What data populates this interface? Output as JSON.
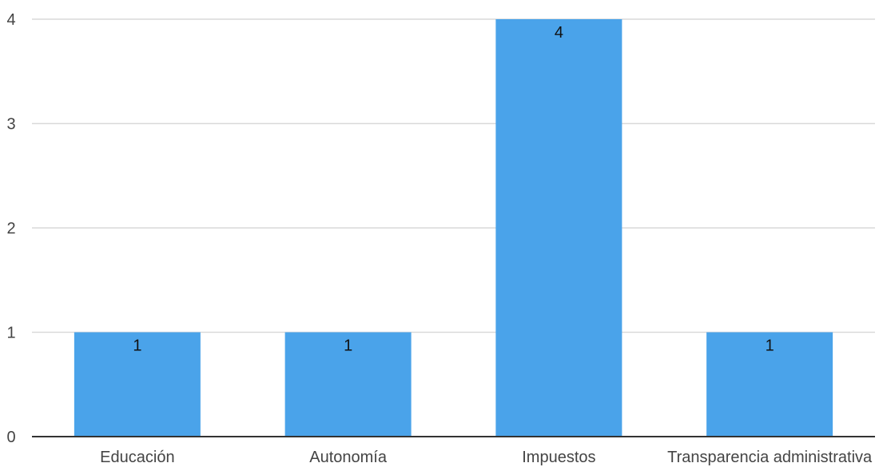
{
  "chart_data": {
    "type": "bar",
    "categories": [
      "Educación",
      "Autonomía",
      "Impuestos",
      "Transparencia administrativa"
    ],
    "values": [
      1,
      1,
      4,
      1
    ],
    "data_labels": [
      "1",
      "1",
      "4",
      "1"
    ],
    "y_ticks": [
      "0",
      "1",
      "2",
      "3",
      "4"
    ],
    "ylim": [
      0,
      4
    ],
    "grid": true,
    "legend": "none",
    "bar_color": "#4aa3ea",
    "grid_color": "#d9d9d9",
    "axis_color": "#333333"
  }
}
